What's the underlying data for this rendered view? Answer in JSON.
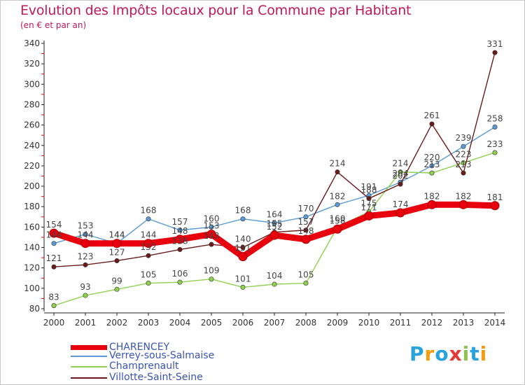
{
  "header": {
    "title": "Evolution des Impôts locaux pour la Commune par Habitant",
    "subtitle": "(en € et par an)"
  },
  "chart_data": {
    "type": "line",
    "title": "Evolution des Impôts locaux pour la Commune par Habitant",
    "subtitle": "(en € et par an)",
    "xlabel": "",
    "ylabel": "",
    "x": [
      2000,
      2001,
      2002,
      2003,
      2004,
      2005,
      2006,
      2007,
      2008,
      2009,
      2010,
      2011,
      2012,
      2013,
      2014
    ],
    "ylim": [
      80,
      340
    ],
    "yticks": [
      80,
      100,
      120,
      140,
      160,
      180,
      200,
      220,
      240,
      260,
      280,
      300,
      320,
      340
    ],
    "grid": false,
    "legend_position": "bottom-left",
    "series": [
      {
        "name": "CHARENCEY",
        "color": "#e8000e",
        "values": [
          154,
          144,
          144,
          144,
          148,
          153,
          131,
          152,
          148,
          158,
          171,
          174,
          182,
          182,
          181
        ],
        "labels": [
          "154",
          "144",
          "144",
          "144",
          "148",
          "153",
          "131",
          "152",
          "148",
          "158",
          "171",
          "174",
          "182",
          "182",
          "181"
        ]
      },
      {
        "name": "Verrey-sous-Salmaise",
        "color": "#5b9bd5",
        "values": [
          144,
          153,
          144,
          168,
          157,
          160,
          168,
          164,
          170,
          182,
          191,
          204,
          220,
          239,
          258
        ],
        "labels": [
          "144",
          "153",
          "144",
          "168",
          "157",
          "160",
          "168",
          "164",
          "170",
          "182",
          "191",
          "204",
          "220",
          "239",
          "258"
        ]
      },
      {
        "name": "Champrenault",
        "color": "#8fd14f",
        "values": [
          83,
          93,
          99,
          105,
          106,
          109,
          101,
          104,
          105,
          160,
          175,
          214,
          213,
          223,
          233
        ],
        "labels": [
          "83",
          "93",
          "99",
          "105",
          "106",
          "109",
          "101",
          "104",
          "105",
          "160",
          "175",
          "214",
          "213",
          "223",
          "233"
        ]
      },
      {
        "name": "Villotte-Saint-Seine",
        "color": "#6b1a1a",
        "values": [
          121,
          123,
          127,
          132,
          138,
          143,
          140,
          155,
          157,
          214,
          188,
          202,
          261,
          213,
          331
        ],
        "labels": [
          "121",
          "123",
          "127",
          "132",
          "138",
          "143",
          "140",
          "155",
          "157",
          "214",
          "188",
          "202",
          "261",
          "213",
          "331"
        ]
      }
    ]
  },
  "legend": {
    "items": [
      {
        "label": "CHARENCEY",
        "color": "#e8000e"
      },
      {
        "label": "Verrey-sous-Salmaise",
        "color": "#5b9bd5"
      },
      {
        "label": "Champrenault",
        "color": "#8fd14f"
      },
      {
        "label": "Villotte-Saint-Seine",
        "color": "#6b1a1a"
      }
    ]
  },
  "brand": {
    "letters": [
      "P",
      "r",
      "o",
      "x",
      "i",
      "t",
      "i"
    ],
    "colors": [
      "#29a3dd",
      "#f39c12",
      "#29a3dd",
      "#e53935",
      "#8bc34a",
      "#29a3dd",
      "#f39c12"
    ]
  }
}
